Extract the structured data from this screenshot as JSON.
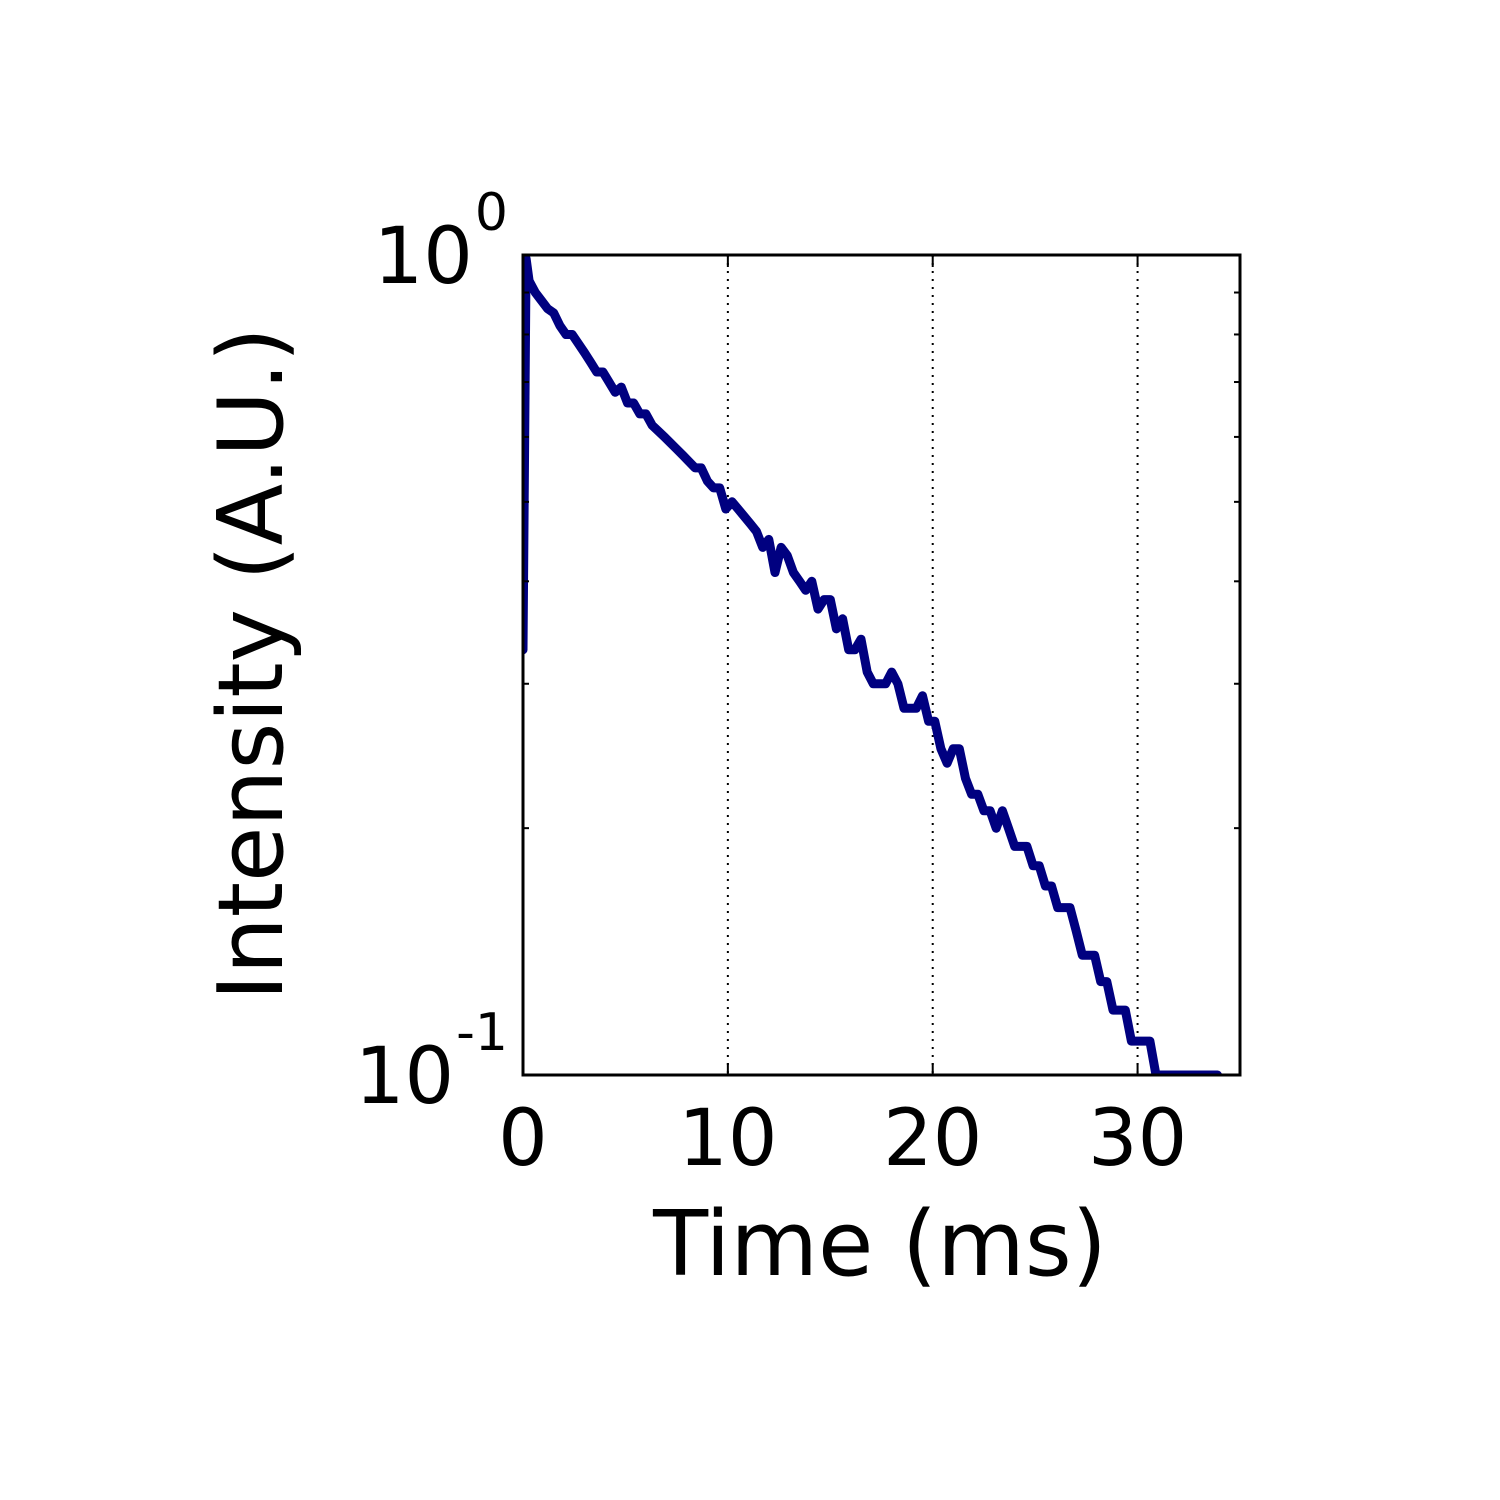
{
  "chart_data": {
    "type": "line",
    "title": "",
    "xlabel": "Time (ms)",
    "ylabel": "Intensity (A.U.)",
    "xlim": [
      0,
      35
    ],
    "ylim": [
      0.1,
      1.0
    ],
    "yscale": "log",
    "grid": {
      "x": true,
      "y": false,
      "style": "dotted"
    },
    "xticks": [
      {
        "value": 0,
        "label": "0"
      },
      {
        "value": 10,
        "label": "10"
      },
      {
        "value": 20,
        "label": "20"
      },
      {
        "value": 30,
        "label": "30"
      }
    ],
    "yticks": [
      {
        "value": 1.0,
        "base": "10",
        "exp": "0"
      },
      {
        "value": 0.1,
        "base": "10",
        "exp": "-1"
      }
    ],
    "series": [
      {
        "color": "#000080",
        "x": [
          0.0,
          0.15,
          0.3,
          0.6,
          0.9,
          1.2,
          1.5,
          1.8,
          2.1,
          2.4,
          2.7,
          3.0,
          3.3,
          3.6,
          3.9,
          4.2,
          4.5,
          4.8,
          5.1,
          5.4,
          5.7,
          6.0,
          6.3,
          6.6,
          6.9,
          7.2,
          7.5,
          7.8,
          8.1,
          8.4,
          8.7,
          9.0,
          9.3,
          9.6,
          9.9,
          10.2,
          10.5,
          10.8,
          11.1,
          11.4,
          11.7,
          12.0,
          12.3,
          12.6,
          12.9,
          13.2,
          13.5,
          13.8,
          14.1,
          14.4,
          14.7,
          15.0,
          15.3,
          15.6,
          15.9,
          16.2,
          16.5,
          16.8,
          17.1,
          17.4,
          17.7,
          18.0,
          18.3,
          18.6,
          18.9,
          19.2,
          19.5,
          19.8,
          20.1,
          20.4,
          20.7,
          21.0,
          21.3,
          21.6,
          21.9,
          22.2,
          22.5,
          22.8,
          23.1,
          23.4,
          23.7,
          24.0,
          24.3,
          24.6,
          24.9,
          25.2,
          25.5,
          25.8,
          26.1,
          26.4,
          26.7,
          27.0,
          27.3,
          27.6,
          27.9,
          28.2,
          28.5,
          28.8,
          29.1,
          29.4,
          29.7,
          30.0,
          30.3,
          30.6,
          30.9,
          31.2,
          31.5,
          31.8,
          32.1,
          32.4,
          32.7,
          33.0,
          33.3,
          33.6,
          33.9
        ],
        "y": [
          0.33,
          0.99,
          0.93,
          0.9,
          0.88,
          0.86,
          0.85,
          0.82,
          0.8,
          0.8,
          0.78,
          0.76,
          0.74,
          0.72,
          0.72,
          0.7,
          0.68,
          0.69,
          0.66,
          0.66,
          0.64,
          0.64,
          0.62,
          0.61,
          0.6,
          0.59,
          0.58,
          0.57,
          0.56,
          0.55,
          0.55,
          0.53,
          0.52,
          0.52,
          0.49,
          0.5,
          0.49,
          0.48,
          0.47,
          0.46,
          0.44,
          0.45,
          0.41,
          0.44,
          0.43,
          0.41,
          0.4,
          0.39,
          0.4,
          0.37,
          0.38,
          0.38,
          0.35,
          0.36,
          0.33,
          0.33,
          0.34,
          0.31,
          0.3,
          0.3,
          0.3,
          0.31,
          0.3,
          0.28,
          0.28,
          0.28,
          0.29,
          0.27,
          0.27,
          0.25,
          0.24,
          0.25,
          0.25,
          0.23,
          0.22,
          0.22,
          0.21,
          0.21,
          0.2,
          0.21,
          0.2,
          0.19,
          0.19,
          0.19,
          0.18,
          0.18,
          0.17,
          0.17,
          0.16,
          0.16,
          0.16,
          0.15,
          0.14,
          0.14,
          0.14,
          0.13,
          0.13,
          0.12,
          0.12,
          0.12,
          0.11,
          0.11,
          0.11,
          0.11,
          0.1,
          0.1,
          0.1,
          0.1,
          0.1,
          0.1,
          0.1,
          0.1,
          0.1,
          0.1,
          0.1
        ]
      }
    ]
  }
}
